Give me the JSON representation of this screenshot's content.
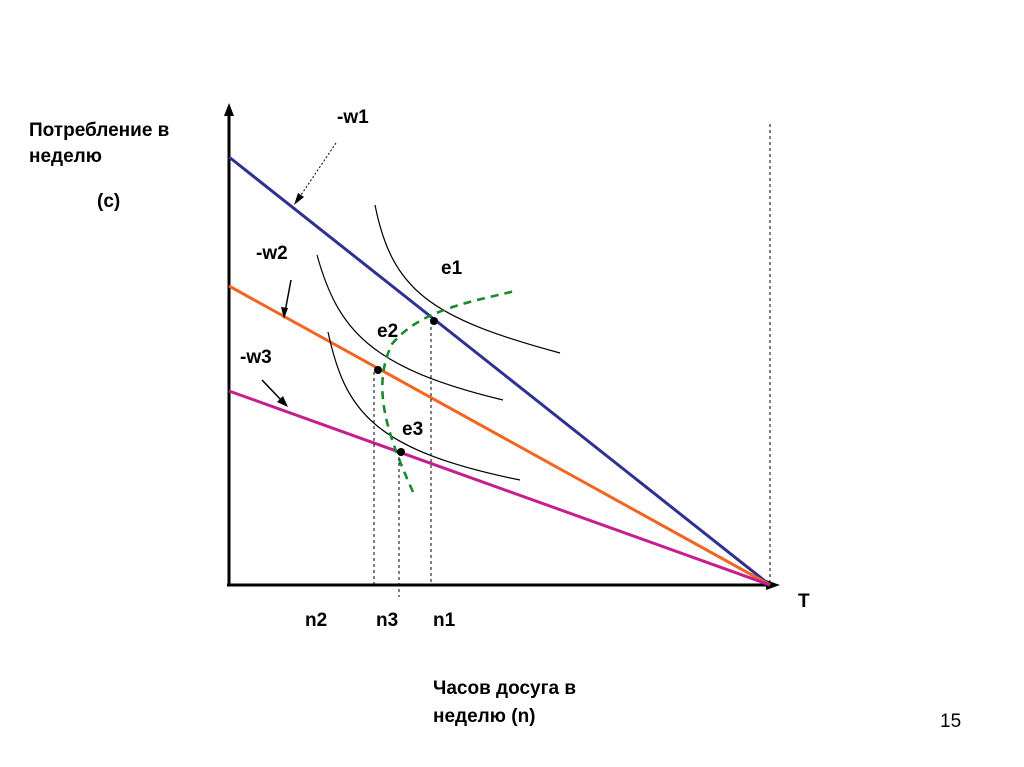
{
  "y_axis_label_line1": "Потребление в",
  "y_axis_label_line2": "неделю",
  "y_axis_symbol": "(c)",
  "x_axis_label_line1": "Часов досуга в",
  "x_axis_label_line2": "неделю (n)",
  "endpoint_label": "T",
  "wage_labels": {
    "w1": "-w1",
    "w2": "-w2",
    "w3": "-w3"
  },
  "equilibrium_labels": {
    "e1": "e1",
    "e2": "e2",
    "e3": "e3"
  },
  "leisure_labels": {
    "n2": "n2",
    "n3": "n3",
    "n1": "n1"
  },
  "page_number": "15",
  "colors": {
    "budget_w1": "#2e3192",
    "budget_w2": "#f26522",
    "budget_w3": "#c41f8c",
    "offer_curve": "#1a8a2e",
    "axes": "#000000"
  }
}
